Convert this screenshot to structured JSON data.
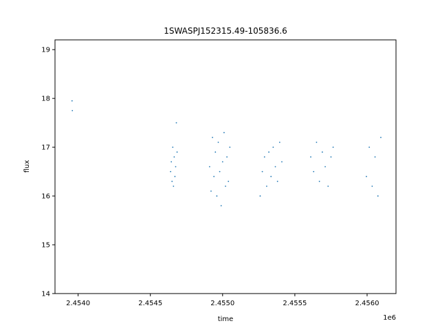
{
  "chart_data": {
    "type": "scatter",
    "title": "1SWASPJ152315.49-105836.6",
    "xlabel": "time",
    "ylabel": "flux",
    "x_offset_label": "1e6",
    "xlim": [
      2453840,
      2456200
    ],
    "ylim": [
      14.0,
      19.2
    ],
    "x_ticks": [
      2454000,
      2454500,
      2455000,
      2455500,
      2456000
    ],
    "x_tick_labels": [
      "2.4540",
      "2.4545",
      "2.4550",
      "2.4555",
      "2.4560"
    ],
    "y_ticks": [
      14,
      15,
      16,
      17,
      18,
      19
    ],
    "y_tick_labels": [
      "14",
      "15",
      "16",
      "17",
      "18",
      "19"
    ],
    "grid": false,
    "marker_color": "#1f77b4",
    "series": [
      {
        "x": [
          2453958,
          2453960,
          2454640,
          2454645,
          2454650,
          2454655,
          2454660,
          2454665,
          2454670,
          2454675,
          2454680,
          2454685,
          2454910,
          2454920,
          2454930,
          2454940,
          2454950,
          2454960,
          2454970,
          2454980,
          2454990,
          2455000,
          2455010,
          2455020,
          2455030,
          2455040,
          2455050,
          2455260,
          2455275,
          2455290,
          2455305,
          2455320,
          2455335,
          2455350,
          2455365,
          2455380,
          2455395,
          2455410,
          2455610,
          2455630,
          2455650,
          2455670,
          2455690,
          2455710,
          2455730,
          2455750,
          2455765,
          2455995,
          2456015,
          2456035,
          2456055,
          2456075,
          2456095
        ],
        "y": [
          17.95,
          17.75,
          16.5,
          16.7,
          16.3,
          17.0,
          16.2,
          16.8,
          16.4,
          16.6,
          17.5,
          16.9,
          16.6,
          16.1,
          17.2,
          16.4,
          16.9,
          16.0,
          17.1,
          16.5,
          15.8,
          16.7,
          17.3,
          16.2,
          16.8,
          16.3,
          17.0,
          16.0,
          16.5,
          16.8,
          16.2,
          16.9,
          16.4,
          17.0,
          16.6,
          16.3,
          17.1,
          16.7,
          16.8,
          16.5,
          17.1,
          16.3,
          16.9,
          16.6,
          16.2,
          16.8,
          17.0,
          16.4,
          17.0,
          16.2,
          16.8,
          16.0,
          17.2
        ]
      }
    ]
  }
}
